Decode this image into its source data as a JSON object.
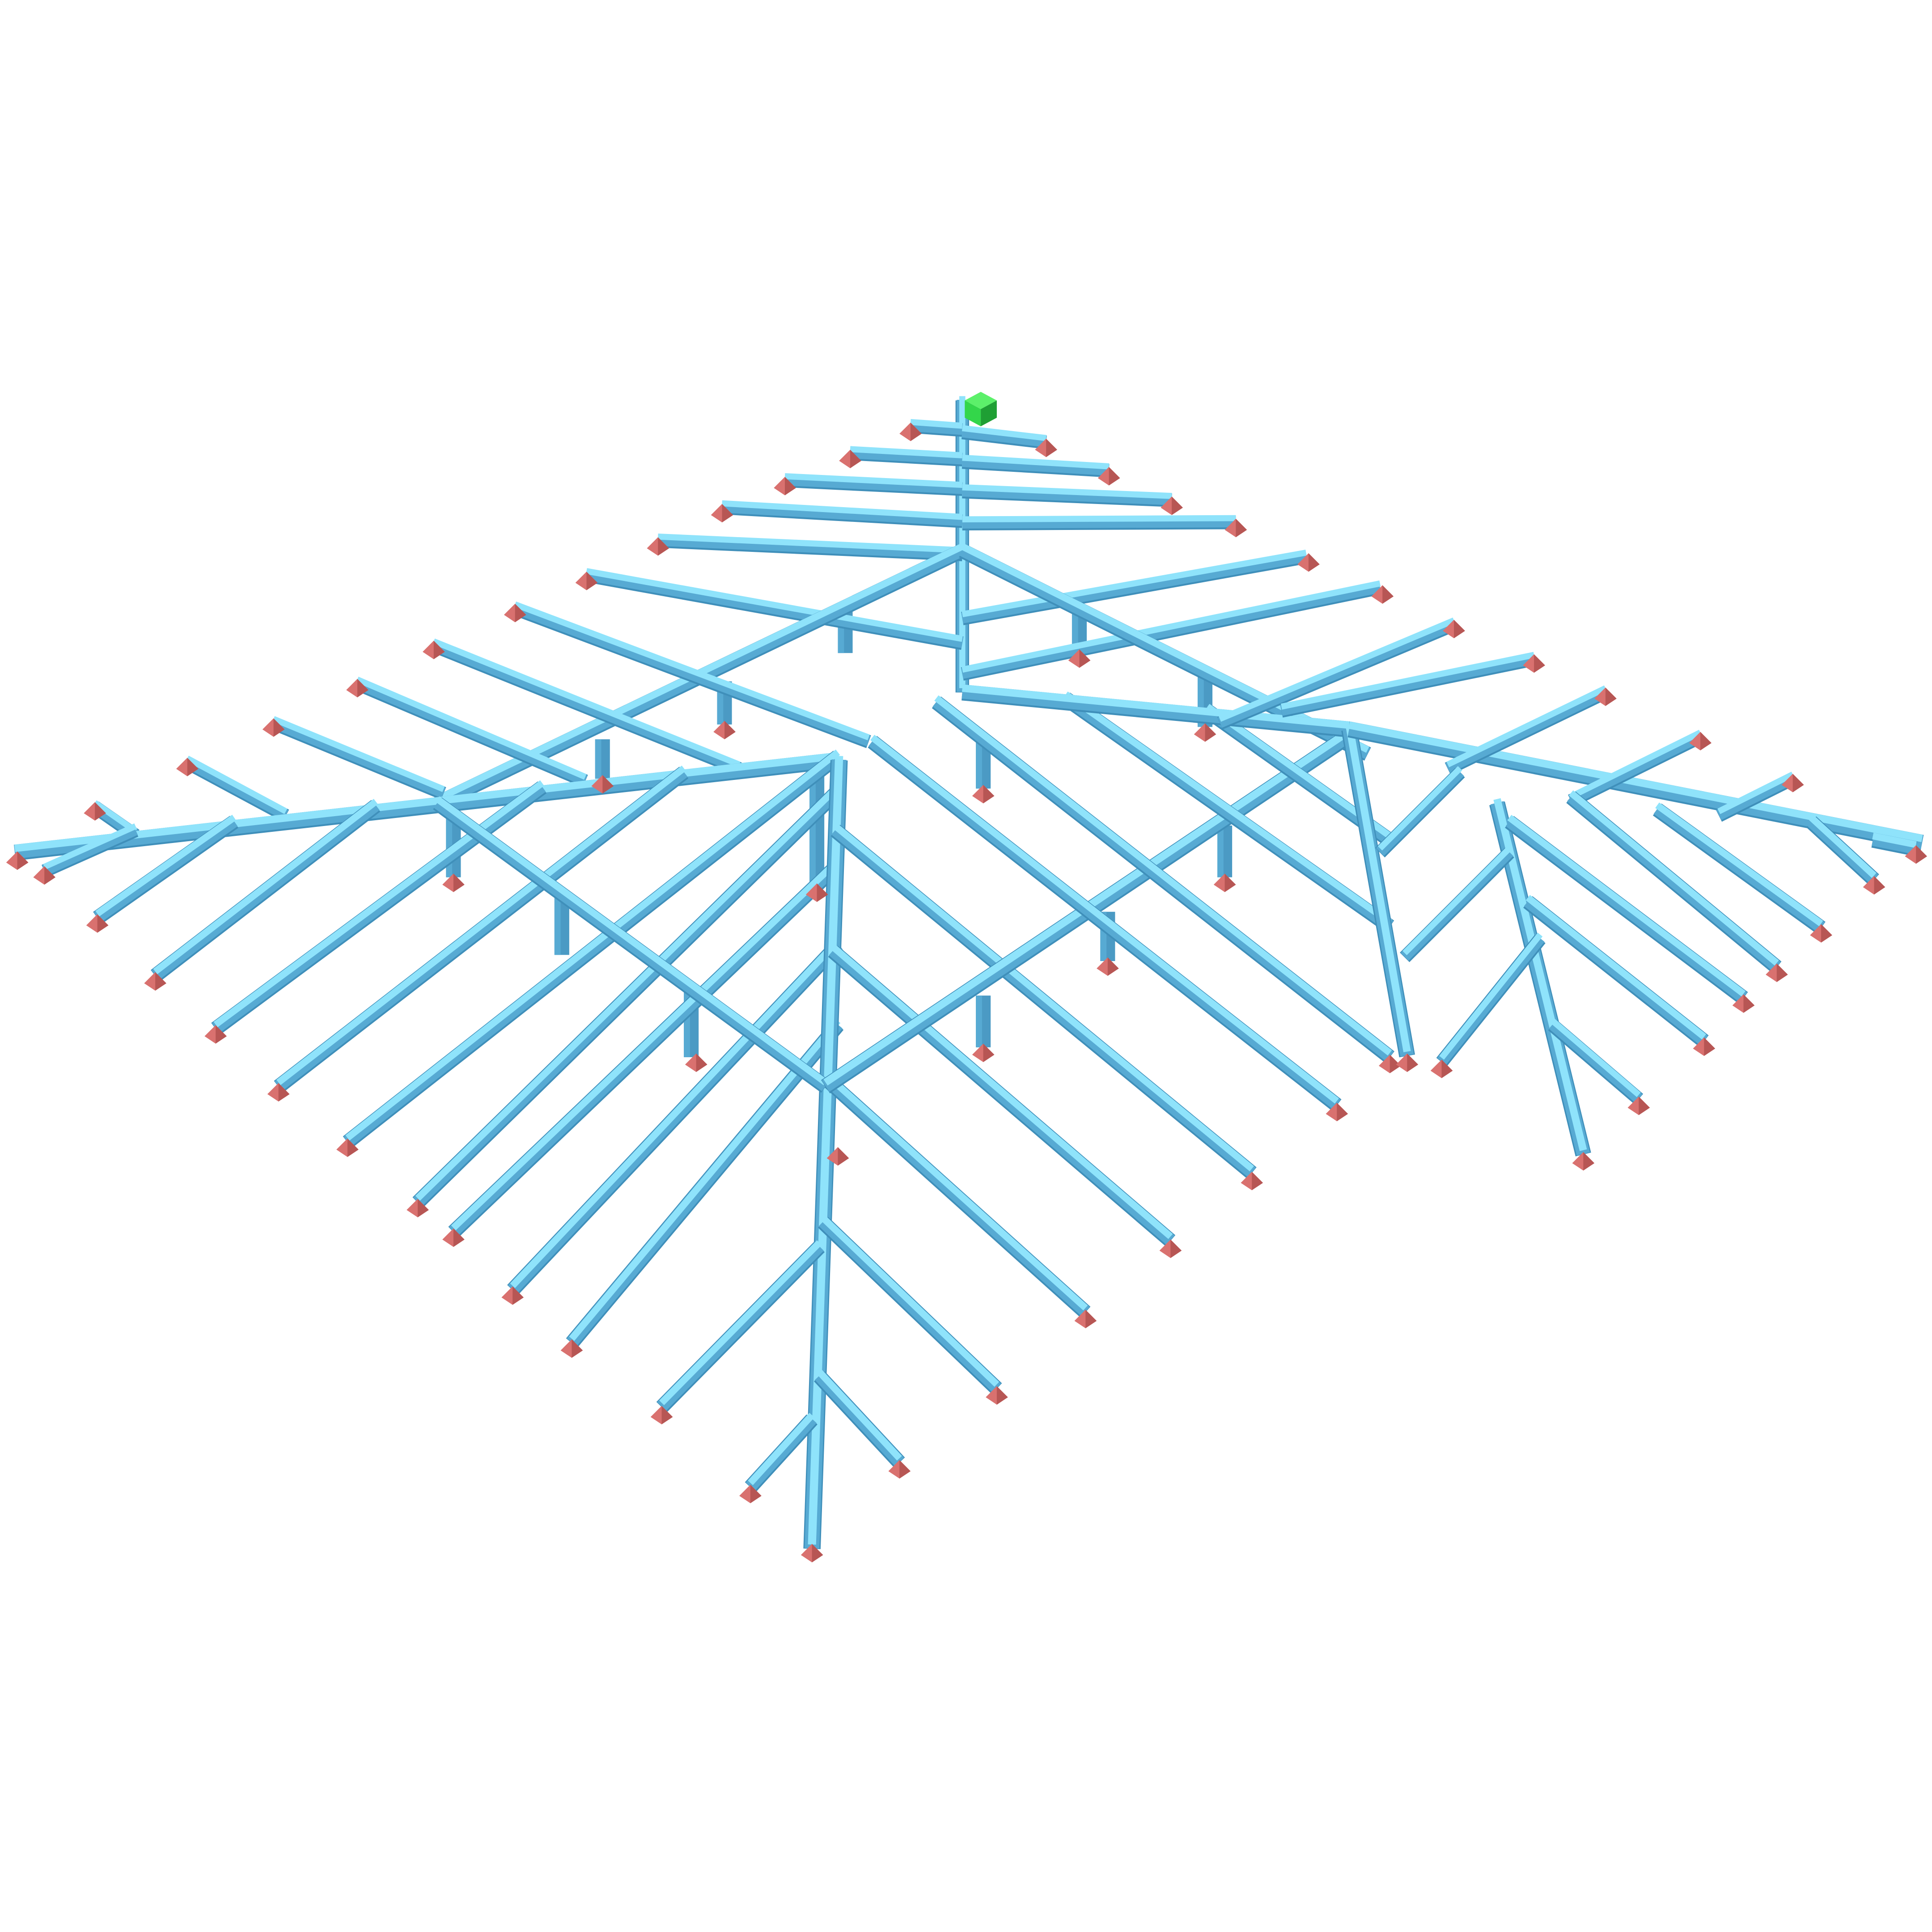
{
  "colors": {
    "background": "#ffffff",
    "beam_top": "#8fe3fb",
    "beam_side": "#57aad3",
    "beam_edge": "#3f8fba",
    "post": "#4b9ac4",
    "support": "#d9716f",
    "support_dark": "#b75654",
    "source": "#33d64a",
    "source_dark": "#1f9f34"
  },
  "elements": {
    "source_node": "green-cube",
    "support_node": "red-pyramid",
    "beam": "light-blue-box-beam",
    "column": "vertical-support-post"
  }
}
